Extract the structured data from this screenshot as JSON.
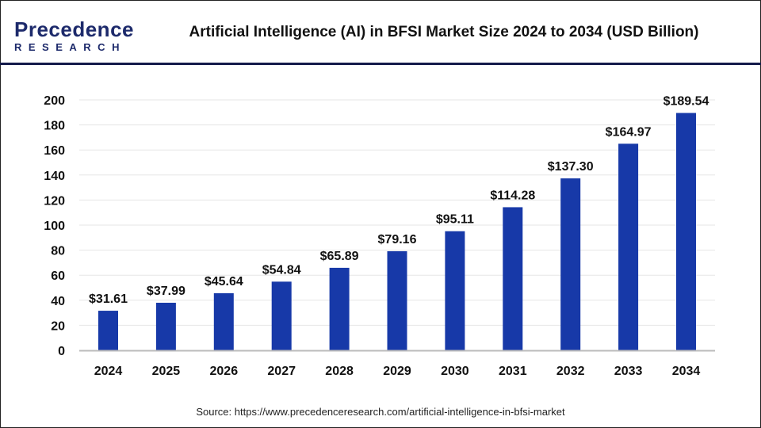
{
  "logo": {
    "line1": "Precedence",
    "line2": "RESEARCH"
  },
  "title": "Artificial Intelligence (AI) in BFSI Market Size 2024 to 2034 (USD Billion)",
  "source": "Source: https://www.precedenceresearch.com/artificial-intelligence-in-bfsi-market",
  "colors": {
    "bar": "#1739a8",
    "header_line": "#141a4a"
  },
  "chart_data": {
    "type": "bar",
    "title": "Artificial Intelligence (AI) in BFSI Market Size 2024 to 2034 (USD Billion)",
    "categories": [
      "2024",
      "2025",
      "2026",
      "2027",
      "2028",
      "2029",
      "2030",
      "2031",
      "2032",
      "2033",
      "2034"
    ],
    "values": [
      31.61,
      37.99,
      45.64,
      54.84,
      65.89,
      79.16,
      95.11,
      114.28,
      137.3,
      164.97,
      189.54
    ],
    "data_labels": [
      "$31.61",
      "$37.99",
      "$45.64",
      "$54.84",
      "$65.89",
      "$79.16",
      "$95.11",
      "$114.28",
      "$137.30",
      "$164.97",
      "$189.54"
    ],
    "yticks": [
      0,
      20,
      40,
      60,
      80,
      100,
      120,
      140,
      160,
      180,
      200
    ],
    "ylim": [
      0,
      200
    ],
    "xlabel": "",
    "ylabel": "",
    "grid": true,
    "legend": "none"
  }
}
